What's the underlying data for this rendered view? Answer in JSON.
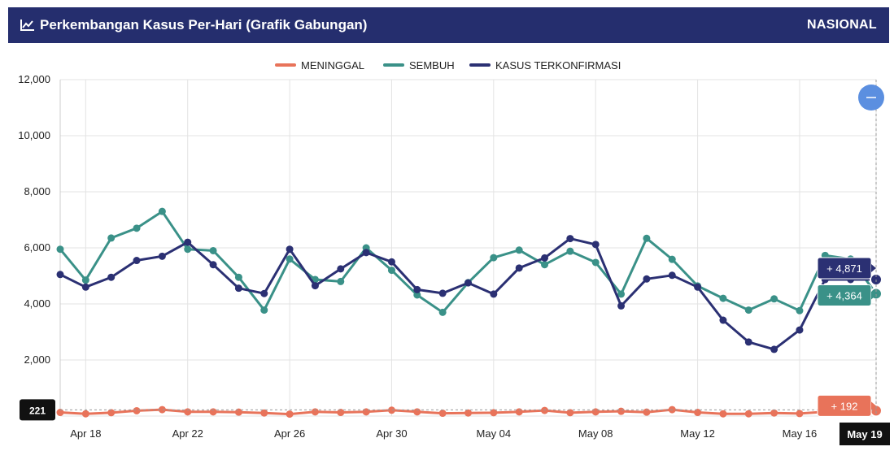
{
  "header": {
    "title": "Perkembangan Kasus Per-Hari (Grafik Gabungan)",
    "scope": "NASIONAL",
    "icon": "line-chart-icon",
    "background": "#252e6e"
  },
  "zoom_button": {
    "icon": "minus-icon",
    "color": "#5b8fe0"
  },
  "chart_data": {
    "type": "line",
    "x": [
      "Apr 17",
      "Apr 18",
      "Apr 19",
      "Apr 20",
      "Apr 21",
      "Apr 22",
      "Apr 23",
      "Apr 24",
      "Apr 25",
      "Apr 26",
      "Apr 27",
      "Apr 28",
      "Apr 29",
      "Apr 30",
      "May 01",
      "May 02",
      "May 03",
      "May 04",
      "May 05",
      "May 06",
      "May 07",
      "May 08",
      "May 09",
      "May 10",
      "May 11",
      "May 12",
      "May 13",
      "May 14",
      "May 15",
      "May 16",
      "May 17",
      "May 18",
      "May 19"
    ],
    "x_tick_labels": [
      "Apr 18",
      "Apr 22",
      "Apr 26",
      "Apr 30",
      "May 04",
      "May 08",
      "May 12",
      "May 16",
      "May 19"
    ],
    "ylim": [
      0,
      12000
    ],
    "y_ticks": [
      0,
      2000,
      4000,
      6000,
      8000,
      10000,
      12000
    ],
    "y_tick_labels": [
      "0",
      "2,000",
      "4,000",
      "6,000",
      "8,000",
      "10,000",
      "12,000"
    ],
    "grid": true,
    "legend_position": "top-center",
    "series": [
      {
        "name": "MENINGGAL",
        "color": "#e8735a",
        "values": [
          130,
          80,
          120,
          190,
          230,
          150,
          150,
          140,
          110,
          70,
          150,
          130,
          150,
          210,
          150,
          100,
          110,
          120,
          150,
          200,
          120,
          150,
          170,
          140,
          230,
          130,
          80,
          80,
          110,
          90,
          150,
          200,
          192
        ]
      },
      {
        "name": "SEMBUH",
        "color": "#3a9188",
        "values": [
          5950,
          4850,
          6350,
          6700,
          7300,
          5950,
          5900,
          4950,
          3780,
          5600,
          4870,
          4800,
          6000,
          5200,
          4320,
          3700,
          4760,
          5650,
          5920,
          5400,
          5880,
          5480,
          4350,
          6340,
          5590,
          4640,
          4200,
          3780,
          4180,
          3760,
          5730,
          5600,
          4364
        ]
      },
      {
        "name": "KASUS TERKONFIRMASI",
        "color": "#2b3073",
        "values": [
          5050,
          4600,
          4950,
          5550,
          5700,
          6200,
          5400,
          4560,
          4370,
          5950,
          4650,
          5250,
          5830,
          5500,
          4510,
          4380,
          4750,
          4350,
          5280,
          5640,
          6330,
          6120,
          3930,
          4890,
          5020,
          4600,
          3420,
          2640,
          2380,
          3070,
          4870,
          4870,
          4871
        ]
      }
    ],
    "tooltip_labels": {
      "KASUS TERKONFIRMASI": "+ 4,871",
      "SEMBUH": "+ 4,364",
      "MENINGGAL": "+ 192"
    },
    "crosshair_y_label": "221",
    "crosshair_x_label": "May 19"
  }
}
